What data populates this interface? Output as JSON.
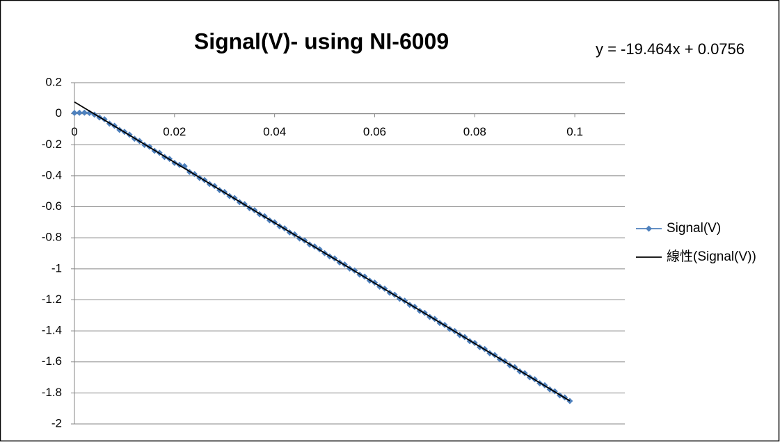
{
  "chart_data": {
    "type": "scatter",
    "title": "Signal(V)- using NI-6009",
    "annotation": "y = -19.464x + 0.0756",
    "xlim": [
      0,
      0.11
    ],
    "xticks": [
      0,
      0.02,
      0.04,
      0.06,
      0.08,
      0.1
    ],
    "ylim": [
      -2,
      0.2
    ],
    "yticks": [
      0.2,
      0,
      -0.2,
      -0.4,
      -0.6,
      -0.8,
      -1,
      -1.2,
      -1.4,
      -1.6,
      -1.8,
      -2
    ],
    "grid": true,
    "legend": "right",
    "series": [
      {
        "name": "Signal(V)",
        "color": "#4f81bd",
        "marker": "diamond",
        "x": [
          0,
          0.001,
          0.002,
          0.003,
          0.004,
          0.005,
          0.006,
          0.007,
          0.008,
          0.009,
          0.01,
          0.011,
          0.012,
          0.013,
          0.014,
          0.015,
          0.016,
          0.017,
          0.018,
          0.019,
          0.02,
          0.021,
          0.022,
          0.023,
          0.024,
          0.025,
          0.026,
          0.027,
          0.028,
          0.029,
          0.03,
          0.031,
          0.032,
          0.033,
          0.034,
          0.035,
          0.036,
          0.037,
          0.038,
          0.039,
          0.04,
          0.041,
          0.042,
          0.043,
          0.044,
          0.045,
          0.046,
          0.047,
          0.048,
          0.049,
          0.05,
          0.051,
          0.052,
          0.053,
          0.054,
          0.055,
          0.056,
          0.057,
          0.058,
          0.059,
          0.06,
          0.061,
          0.062,
          0.063,
          0.064,
          0.065,
          0.066,
          0.067,
          0.068,
          0.069,
          0.07,
          0.071,
          0.072,
          0.073,
          0.074,
          0.075,
          0.076,
          0.077,
          0.078,
          0.079,
          0.08,
          0.081,
          0.082,
          0.083,
          0.084,
          0.085,
          0.086,
          0.087,
          0.088,
          0.089,
          0.09,
          0.091,
          0.092,
          0.093,
          0.094,
          0.095,
          0.096,
          0.097,
          0.098,
          0.099
        ],
        "values": [
          0.005,
          0.006,
          0.007,
          0.005,
          -0.006,
          -0.024,
          -0.036,
          -0.064,
          -0.078,
          -0.104,
          -0.117,
          -0.135,
          -0.161,
          -0.176,
          -0.201,
          -0.213,
          -0.239,
          -0.252,
          -0.279,
          -0.291,
          -0.317,
          -0.33,
          -0.338,
          -0.375,
          -0.389,
          -0.414,
          -0.428,
          -0.453,
          -0.466,
          -0.492,
          -0.505,
          -0.531,
          -0.544,
          -0.57,
          -0.583,
          -0.609,
          -0.622,
          -0.648,
          -0.661,
          -0.687,
          -0.7,
          -0.726,
          -0.739,
          -0.765,
          -0.778,
          -0.804,
          -0.817,
          -0.843,
          -0.856,
          -0.874,
          -0.899,
          -0.92,
          -0.933,
          -0.959,
          -0.972,
          -0.998,
          -1.011,
          -1.037,
          -1.05,
          -1.076,
          -1.089,
          -1.115,
          -1.128,
          -1.154,
          -1.167,
          -1.193,
          -1.206,
          -1.232,
          -1.245,
          -1.271,
          -1.284,
          -1.31,
          -1.323,
          -1.349,
          -1.362,
          -1.388,
          -1.401,
          -1.427,
          -1.44,
          -1.466,
          -1.478,
          -1.505,
          -1.517,
          -1.544,
          -1.556,
          -1.583,
          -1.595,
          -1.622,
          -1.634,
          -1.661,
          -1.673,
          -1.699,
          -1.712,
          -1.738,
          -1.751,
          -1.777,
          -1.79,
          -1.816,
          -1.829,
          -1.852
        ]
      },
      {
        "name": "線性(Signal(V))",
        "color": "#000000",
        "marker": "none",
        "x": [
          0,
          0.099
        ],
        "values": [
          0.0756,
          -1.8513
        ]
      }
    ]
  }
}
